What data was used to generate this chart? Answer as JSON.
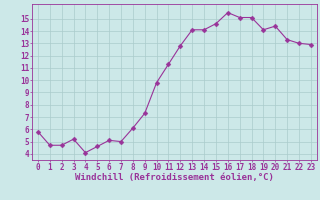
{
  "x": [
    0,
    1,
    2,
    3,
    4,
    5,
    6,
    7,
    8,
    9,
    10,
    11,
    12,
    13,
    14,
    15,
    16,
    17,
    18,
    19,
    20,
    21,
    22,
    23
  ],
  "y": [
    5.8,
    4.7,
    4.7,
    5.2,
    4.1,
    4.6,
    5.1,
    5.0,
    6.1,
    7.3,
    9.8,
    11.3,
    12.8,
    14.1,
    14.1,
    14.6,
    15.5,
    15.1,
    15.1,
    14.1,
    14.4,
    13.3,
    13.0,
    12.9
  ],
  "line_color": "#993399",
  "marker": "D",
  "markersize": 2.5,
  "linewidth": 0.8,
  "bg_color": "#cce8e8",
  "grid_color": "#aacccc",
  "tick_color": "#993399",
  "label_color": "#993399",
  "xlabel": "Windchill (Refroidissement éolien,°C)",
  "xlabel_fontsize": 6.5,
  "tick_fontsize": 5.5,
  "xlim": [
    -0.5,
    23.5
  ],
  "ylim": [
    3.5,
    16.2
  ],
  "yticks": [
    4,
    5,
    6,
    7,
    8,
    9,
    10,
    11,
    12,
    13,
    14,
    15
  ],
  "xticks": [
    0,
    1,
    2,
    3,
    4,
    5,
    6,
    7,
    8,
    9,
    10,
    11,
    12,
    13,
    14,
    15,
    16,
    17,
    18,
    19,
    20,
    21,
    22,
    23
  ]
}
